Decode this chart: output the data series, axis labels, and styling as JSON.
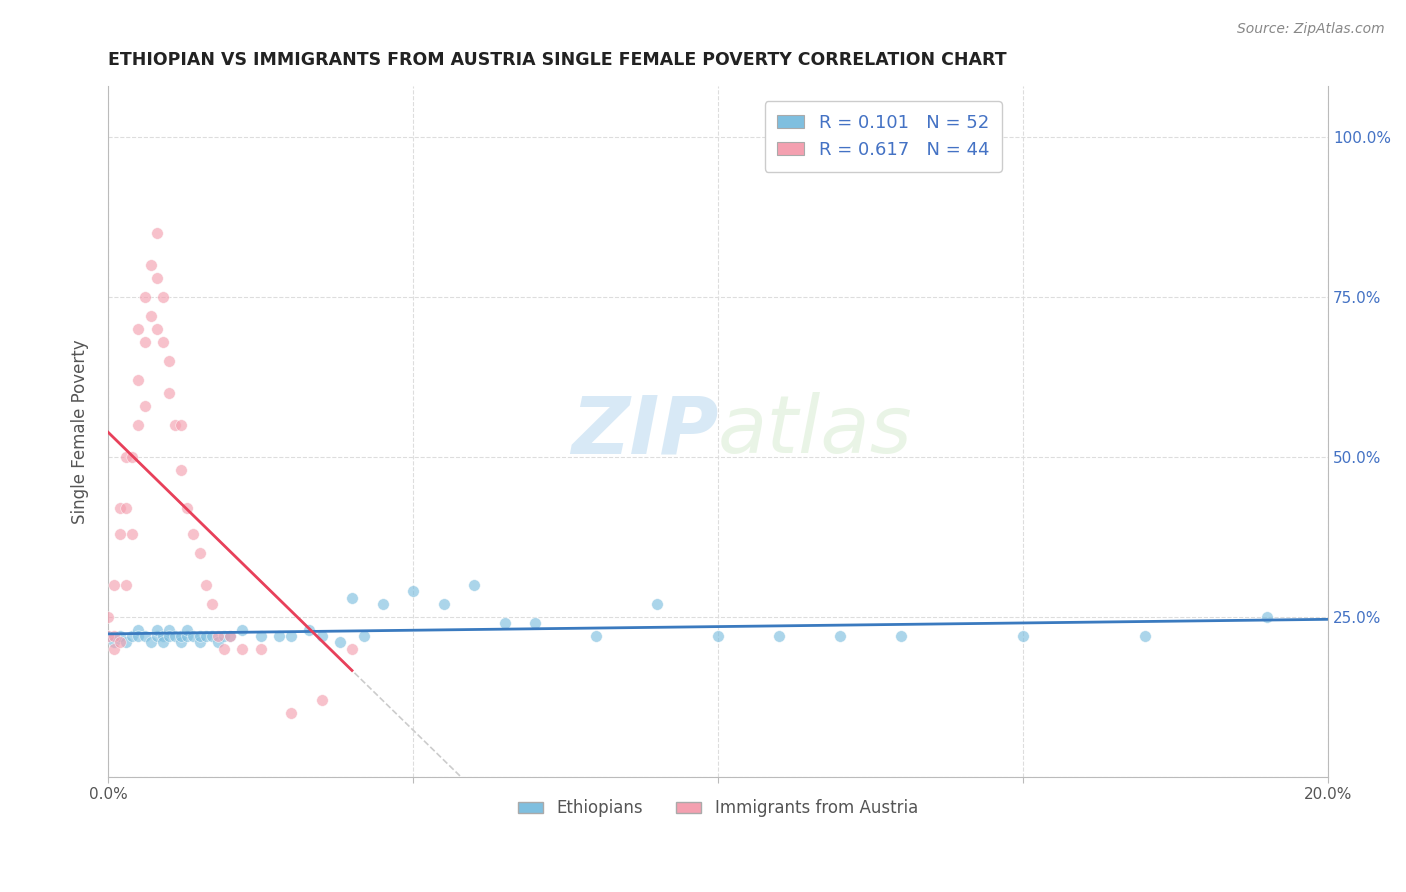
{
  "title": "ETHIOPIAN VS IMMIGRANTS FROM AUSTRIA SINGLE FEMALE POVERTY CORRELATION CHART",
  "source": "Source: ZipAtlas.com",
  "ylabel": "Single Female Poverty",
  "xlim": [
    0.0,
    0.2
  ],
  "ylim": [
    0.0,
    1.08
  ],
  "yticks_right_labels": [
    "100.0%",
    "75.0%",
    "50.0%",
    "25.0%"
  ],
  "yticks_right_vals": [
    1.0,
    0.75,
    0.5,
    0.25
  ],
  "r_ethiopian": 0.101,
  "n_ethiopian": 52,
  "r_austria": 0.617,
  "n_austria": 44,
  "color_ethiopian": "#7fbfdf",
  "color_austria": "#f4a0b0",
  "trendline_color_ethiopian": "#3a7abf",
  "trendline_color_austria": "#e8405a",
  "watermark_zip": "ZIP",
  "watermark_atlas": "atlas",
  "legend_ethiopians": "Ethiopians",
  "legend_austria": "Immigrants from Austria",
  "ethiopian_x": [
    0.0,
    0.001,
    0.002,
    0.003,
    0.004,
    0.005,
    0.005,
    0.006,
    0.007,
    0.008,
    0.008,
    0.009,
    0.009,
    0.01,
    0.01,
    0.011,
    0.012,
    0.012,
    0.013,
    0.013,
    0.014,
    0.015,
    0.015,
    0.016,
    0.017,
    0.018,
    0.019,
    0.02,
    0.022,
    0.025,
    0.028,
    0.03,
    0.033,
    0.035,
    0.038,
    0.04,
    0.042,
    0.045,
    0.05,
    0.055,
    0.06,
    0.065,
    0.07,
    0.08,
    0.09,
    0.1,
    0.11,
    0.12,
    0.13,
    0.15,
    0.17,
    0.19
  ],
  "ethiopian_y": [
    0.22,
    0.21,
    0.22,
    0.21,
    0.22,
    0.23,
    0.22,
    0.22,
    0.21,
    0.22,
    0.23,
    0.22,
    0.21,
    0.23,
    0.22,
    0.22,
    0.21,
    0.22,
    0.22,
    0.23,
    0.22,
    0.21,
    0.22,
    0.22,
    0.22,
    0.21,
    0.22,
    0.22,
    0.23,
    0.22,
    0.22,
    0.22,
    0.23,
    0.22,
    0.21,
    0.28,
    0.22,
    0.27,
    0.29,
    0.27,
    0.3,
    0.24,
    0.24,
    0.22,
    0.27,
    0.22,
    0.22,
    0.22,
    0.22,
    0.22,
    0.22,
    0.25
  ],
  "austria_x": [
    0.0,
    0.0,
    0.001,
    0.001,
    0.001,
    0.002,
    0.002,
    0.002,
    0.003,
    0.003,
    0.003,
    0.004,
    0.004,
    0.005,
    0.005,
    0.005,
    0.006,
    0.006,
    0.006,
    0.007,
    0.007,
    0.008,
    0.008,
    0.008,
    0.009,
    0.009,
    0.01,
    0.01,
    0.011,
    0.012,
    0.012,
    0.013,
    0.014,
    0.015,
    0.016,
    0.017,
    0.018,
    0.019,
    0.02,
    0.022,
    0.025,
    0.03,
    0.035,
    0.04
  ],
  "austria_y": [
    0.22,
    0.25,
    0.2,
    0.22,
    0.3,
    0.21,
    0.38,
    0.42,
    0.3,
    0.42,
    0.5,
    0.38,
    0.5,
    0.55,
    0.62,
    0.7,
    0.58,
    0.68,
    0.75,
    0.72,
    0.8,
    0.7,
    0.78,
    0.85,
    0.68,
    0.75,
    0.6,
    0.65,
    0.55,
    0.48,
    0.55,
    0.42,
    0.38,
    0.35,
    0.3,
    0.27,
    0.22,
    0.2,
    0.22,
    0.2,
    0.2,
    0.1,
    0.12,
    0.2
  ]
}
